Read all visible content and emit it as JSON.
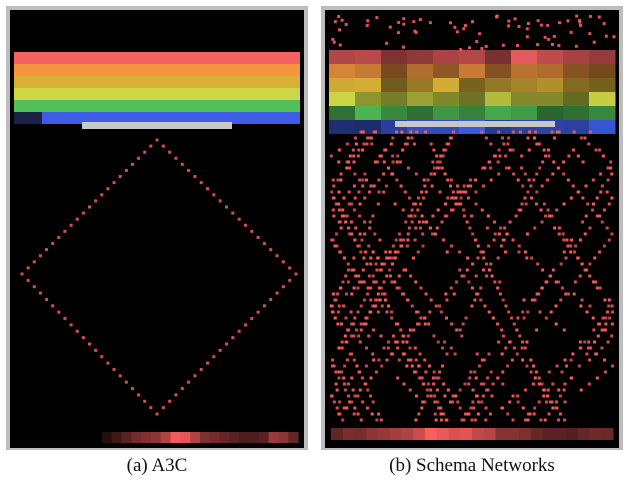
{
  "panels": [
    {
      "id": "a",
      "caption": "(a) A3C",
      "row_colors": [
        "#f56262",
        "#f5963f",
        "#d8b036",
        "#cdd644",
        "#52c05a",
        "#3e5ce6"
      ],
      "pattern": "diamond"
    },
    {
      "id": "b",
      "caption": "(b) Schema Networks",
      "row_colors": [
        "#f56262",
        "#f5963f",
        "#d8b036",
        "#cdd644",
        "#52c05a",
        "#3e5ce6"
      ],
      "pattern": "crisscross"
    }
  ],
  "colors": {
    "frame": "#bdbdbd",
    "background": "#000000",
    "paddle": "#c8c8c8",
    "trail": "#ff5a5a"
  }
}
